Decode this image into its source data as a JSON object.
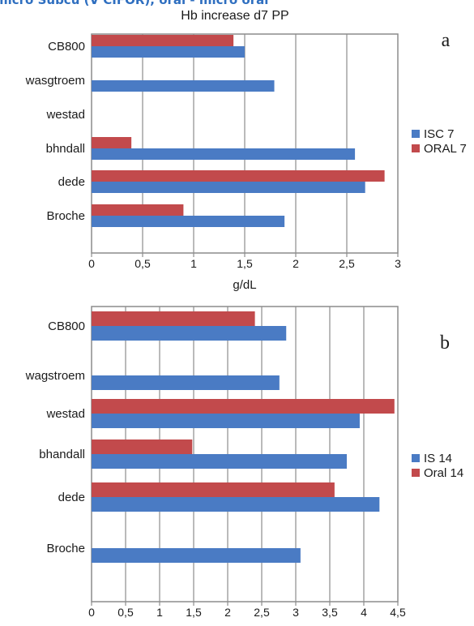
{
  "page": {
    "caption": "micro Subcu (V CIFOR), oral - micro oral"
  },
  "colors": {
    "series_blue": "#4a7bc4",
    "series_red": "#c24a4c",
    "grid": "#8c8c8c",
    "frame": "#8c8c8c"
  },
  "chart_data": [
    {
      "type": "bar",
      "orientation": "horizontal",
      "panel_label": "a",
      "title": "Hb increase d7 PP",
      "xlabel": "g/dL",
      "ylabel": "",
      "xlim": [
        0,
        3
      ],
      "x_ticks": [
        "0",
        "0,5",
        "1",
        "1,5",
        "2",
        "2,5",
        "3"
      ],
      "x_tick_values": [
        0,
        0.5,
        1,
        1.5,
        2,
        2.5,
        3
      ],
      "categories": [
        "CB800",
        "wasgtroem",
        "westad",
        "bhndall",
        "dede",
        "Broche"
      ],
      "series": [
        {
          "name": "ISC 7",
          "color": "#4a7bc4",
          "values": [
            1.5,
            1.79,
            null,
            2.58,
            2.68,
            1.89
          ]
        },
        {
          "name": "ORAL 7",
          "color": "#c24a4c",
          "values": [
            1.39,
            null,
            null,
            0.39,
            2.87,
            0.9
          ]
        }
      ],
      "grid": true,
      "legend_position": "right"
    },
    {
      "type": "bar",
      "orientation": "horizontal",
      "panel_label": "b",
      "title": "",
      "xlabel": "",
      "ylabel": "",
      "xlim": [
        0,
        4.5
      ],
      "x_ticks": [
        "0",
        "0,5",
        "1",
        "1,5",
        "2",
        "2,5",
        "3",
        "3,5",
        "4",
        "4,5"
      ],
      "x_tick_values": [
        0,
        0.5,
        1,
        1.5,
        2,
        2.5,
        3,
        3.5,
        4,
        4.5
      ],
      "categories": [
        "CB800",
        "wagstroem",
        "westad",
        "bhandall",
        "dede",
        "Broche"
      ],
      "series": [
        {
          "name": "IS 14",
          "color": "#4a7bc4",
          "values": [
            2.86,
            2.76,
            3.94,
            3.75,
            4.23,
            3.07
          ]
        },
        {
          "name": "Oral 14",
          "color": "#c24a4c",
          "values": [
            2.4,
            null,
            4.45,
            1.48,
            3.57,
            null
          ]
        }
      ],
      "grid": true,
      "legend_position": "right"
    }
  ]
}
